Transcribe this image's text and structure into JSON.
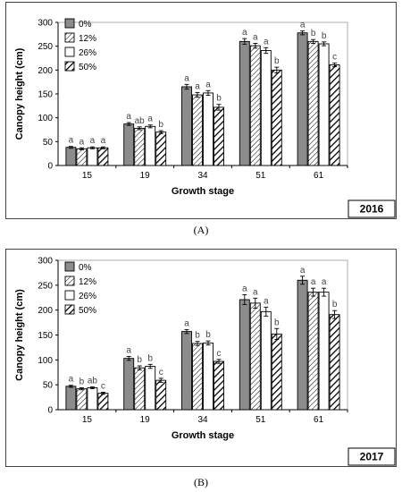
{
  "chart_data": [
    {
      "type": "bar",
      "panel_label": "(A)",
      "year": "2016",
      "xlabel": "Growth stage",
      "ylabel": "Canopy height (cm)",
      "ylim": [
        0,
        300
      ],
      "yticks": [
        "0",
        "50",
        "100",
        "150",
        "200",
        "250",
        "300"
      ],
      "categories": [
        "15",
        "19",
        "34",
        "51",
        "61"
      ],
      "legend_position": "top-left",
      "series": [
        {
          "name": "0%",
          "pattern": "solid-gray",
          "values": [
            38,
            87,
            165,
            260,
            278
          ],
          "errors": [
            2,
            3,
            5,
            6,
            4
          ],
          "letters": [
            "a",
            "a",
            "a",
            "a",
            "a"
          ]
        },
        {
          "name": "12%",
          "pattern": "hatch",
          "values": [
            35,
            78,
            148,
            251,
            260
          ],
          "errors": [
            2,
            3,
            5,
            5,
            4
          ],
          "letters": [
            "a",
            "ab",
            "a",
            "a",
            "b"
          ]
        },
        {
          "name": "26%",
          "pattern": "white",
          "values": [
            37,
            82,
            152,
            241,
            255
          ],
          "errors": [
            2,
            3,
            5,
            6,
            4
          ],
          "letters": [
            "a",
            "a",
            "a",
            "a",
            "b"
          ]
        },
        {
          "name": "50%",
          "pattern": "bold-hatch",
          "values": [
            37,
            70,
            122,
            200,
            211
          ],
          "errors": [
            2,
            3,
            6,
            6,
            4
          ],
          "letters": [
            "a",
            "b",
            "b",
            "b",
            "c"
          ]
        }
      ]
    },
    {
      "type": "bar",
      "panel_label": "(B)",
      "year": "2017",
      "xlabel": "Growth stage",
      "ylabel": "Canopy height (cm)",
      "ylim": [
        0,
        300
      ],
      "yticks": [
        "0",
        "50",
        "100",
        "150",
        "200",
        "250",
        "300"
      ],
      "categories": [
        "15",
        "19",
        "34",
        "51",
        "61"
      ],
      "legend_position": "top-left",
      "series": [
        {
          "name": "0%",
          "pattern": "solid-gray",
          "values": [
            47,
            103,
            157,
            221,
            260
          ],
          "errors": [
            2,
            4,
            4,
            10,
            8
          ],
          "letters": [
            "a",
            "a",
            "a",
            "a",
            "a"
          ]
        },
        {
          "name": "12%",
          "pattern": "hatch",
          "values": [
            42,
            84,
            133,
            214,
            236
          ],
          "errors": [
            2,
            4,
            4,
            10,
            8
          ],
          "letters": [
            "b",
            "b",
            "b",
            "a",
            "a"
          ]
        },
        {
          "name": "26%",
          "pattern": "white",
          "values": [
            44,
            87,
            134,
            197,
            236
          ],
          "errors": [
            2,
            4,
            4,
            9,
            8
          ],
          "letters": [
            "ab",
            "b",
            "b",
            "a",
            "a"
          ]
        },
        {
          "name": "50%",
          "pattern": "bold-hatch",
          "values": [
            33,
            59,
            97,
            152,
            191
          ],
          "errors": [
            2,
            4,
            4,
            11,
            8
          ],
          "letters": [
            "c",
            "c",
            "c",
            "b",
            "b"
          ]
        }
      ]
    }
  ],
  "colors": {
    "solid": "#8c8c8c",
    "stroke": "#000000",
    "letter": "#444444"
  }
}
